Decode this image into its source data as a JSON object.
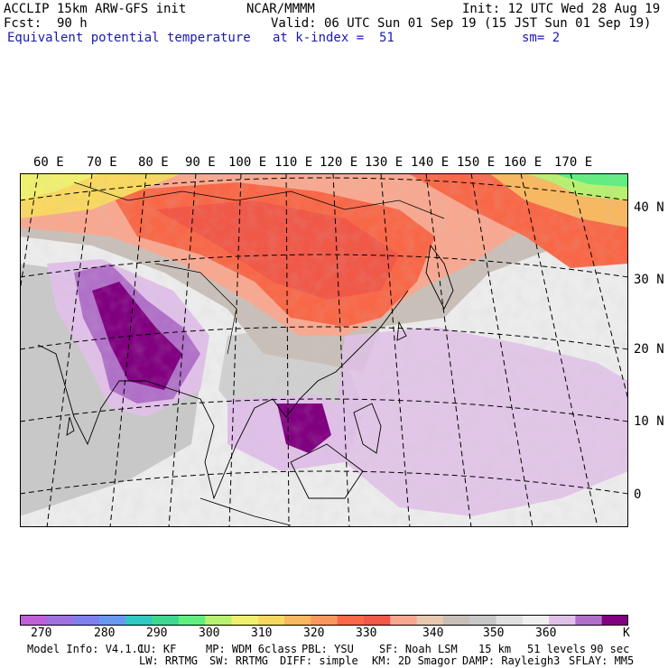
{
  "header": {
    "model": "ACCLIP 15km ARW-GFS init",
    "org": "NCAR/MMMM",
    "init": "Init: 12 UTC Wed 28 Aug 19",
    "fcst_label": "Fcst:",
    "fcst_value": "90 h",
    "valid": "Valid: 06 UTC Sun 01 Sep 19 (15 JST Sun 01 Sep 19)",
    "field": "Equivalent potential temperature",
    "level": "at k-index =  51",
    "smooth": "sm= 2"
  },
  "map": {
    "lon_labels": [
      "60 E",
      "70 E",
      "80 E",
      "90 E",
      "100 E",
      "110 E",
      "120 E",
      "130 E",
      "140 E",
      "150 E",
      "160 E",
      "170 E"
    ],
    "lat_labels": [
      "40 N",
      "30 N",
      "20 N",
      "10 N",
      "0"
    ]
  },
  "colorbar": {
    "unit": "K",
    "labels": [
      "270",
      "280",
      "290",
      "300",
      "310",
      "320",
      "330",
      "340",
      "350",
      "360"
    ],
    "colors": [
      "#c060d8",
      "#a070e0",
      "#8080ec",
      "#6898f0",
      "#30c8c0",
      "#40d890",
      "#60ee80",
      "#b8f070",
      "#f0f070",
      "#f8d860",
      "#f8b860",
      "#f89860",
      "#f86848",
      "#f05848",
      "#f8a890",
      "#e8c8b0",
      "#c8c0b8",
      "#c8c8c8",
      "#e0e0e0",
      "#f0f0f0",
      "#e0c0e8",
      "#b070c8",
      "#800080"
    ]
  },
  "footer": {
    "line1": [
      "Model Info: V4.1.1",
      "CU: KF",
      "MP: WDM 6class",
      "PBL: YSU",
      "SF: Noah LSM",
      "15 km",
      "51 levels",
      "90 sec"
    ],
    "line2": [
      "LW: RRTMG",
      "SW: RRTMG",
      "DIFF: simple",
      "KM: 2D Smagor",
      "DAMP: Rayleigh3",
      "SFLAY: MM5"
    ]
  }
}
